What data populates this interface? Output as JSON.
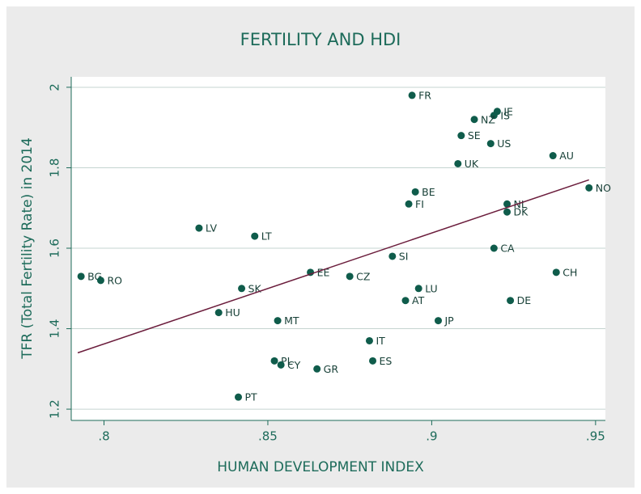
{
  "chart_data": {
    "type": "scatter",
    "title": "FERTILITY AND HDI",
    "x_label": "HUMAN DEVELOPMENT INDEX",
    "y_label": "TFR (Total Fertility Rate) in 2014",
    "color": "#0f5c4b",
    "line_color": "#6b1d3c",
    "grid": true,
    "xlim": [
      0.79,
      0.953
    ],
    "ylim": [
      1.172,
      2.026
    ],
    "xticks": [
      {
        "value": 0.8,
        "label": ".8"
      },
      {
        "value": 0.85,
        "label": ".85"
      },
      {
        "value": 0.9,
        "label": ".9"
      },
      {
        "value": 0.95,
        "label": ".95"
      }
    ],
    "yticks": [
      1.2,
      1.4,
      1.6,
      1.8,
      2
    ],
    "labels": [
      "FR",
      "IE",
      "IS",
      "NZ",
      "SE",
      "US",
      "AU",
      "UK",
      "BE",
      "FI",
      "NL",
      "DK",
      "NO",
      "LV",
      "LT",
      "SI",
      "CA",
      "CH",
      "BG",
      "RO",
      "EE",
      "CZ",
      "SK",
      "LU",
      "AT",
      "DE",
      "HU",
      "MT",
      "JP",
      "IT",
      "PL",
      "ES",
      "CY",
      "GR",
      "PT"
    ],
    "x": [
      0.894,
      0.92,
      0.919,
      0.913,
      0.909,
      0.918,
      0.937,
      0.908,
      0.895,
      0.893,
      0.923,
      0.923,
      0.948,
      0.829,
      0.846,
      0.888,
      0.919,
      0.938,
      0.793,
      0.799,
      0.863,
      0.875,
      0.842,
      0.896,
      0.892,
      0.924,
      0.835,
      0.853,
      0.902,
      0.881,
      0.852,
      0.882,
      0.854,
      0.865,
      0.841
    ],
    "y": [
      1.98,
      1.94,
      1.93,
      1.92,
      1.88,
      1.86,
      1.83,
      1.81,
      1.74,
      1.71,
      1.71,
      1.69,
      1.75,
      1.65,
      1.63,
      1.58,
      1.6,
      1.54,
      1.53,
      1.52,
      1.54,
      1.53,
      1.5,
      1.5,
      1.47,
      1.47,
      1.44,
      1.42,
      1.42,
      1.37,
      1.32,
      1.32,
      1.31,
      1.3,
      1.23
    ],
    "fit_line": {
      "x": [
        0.792,
        0.948
      ],
      "y": [
        1.34,
        1.77
      ]
    }
  }
}
